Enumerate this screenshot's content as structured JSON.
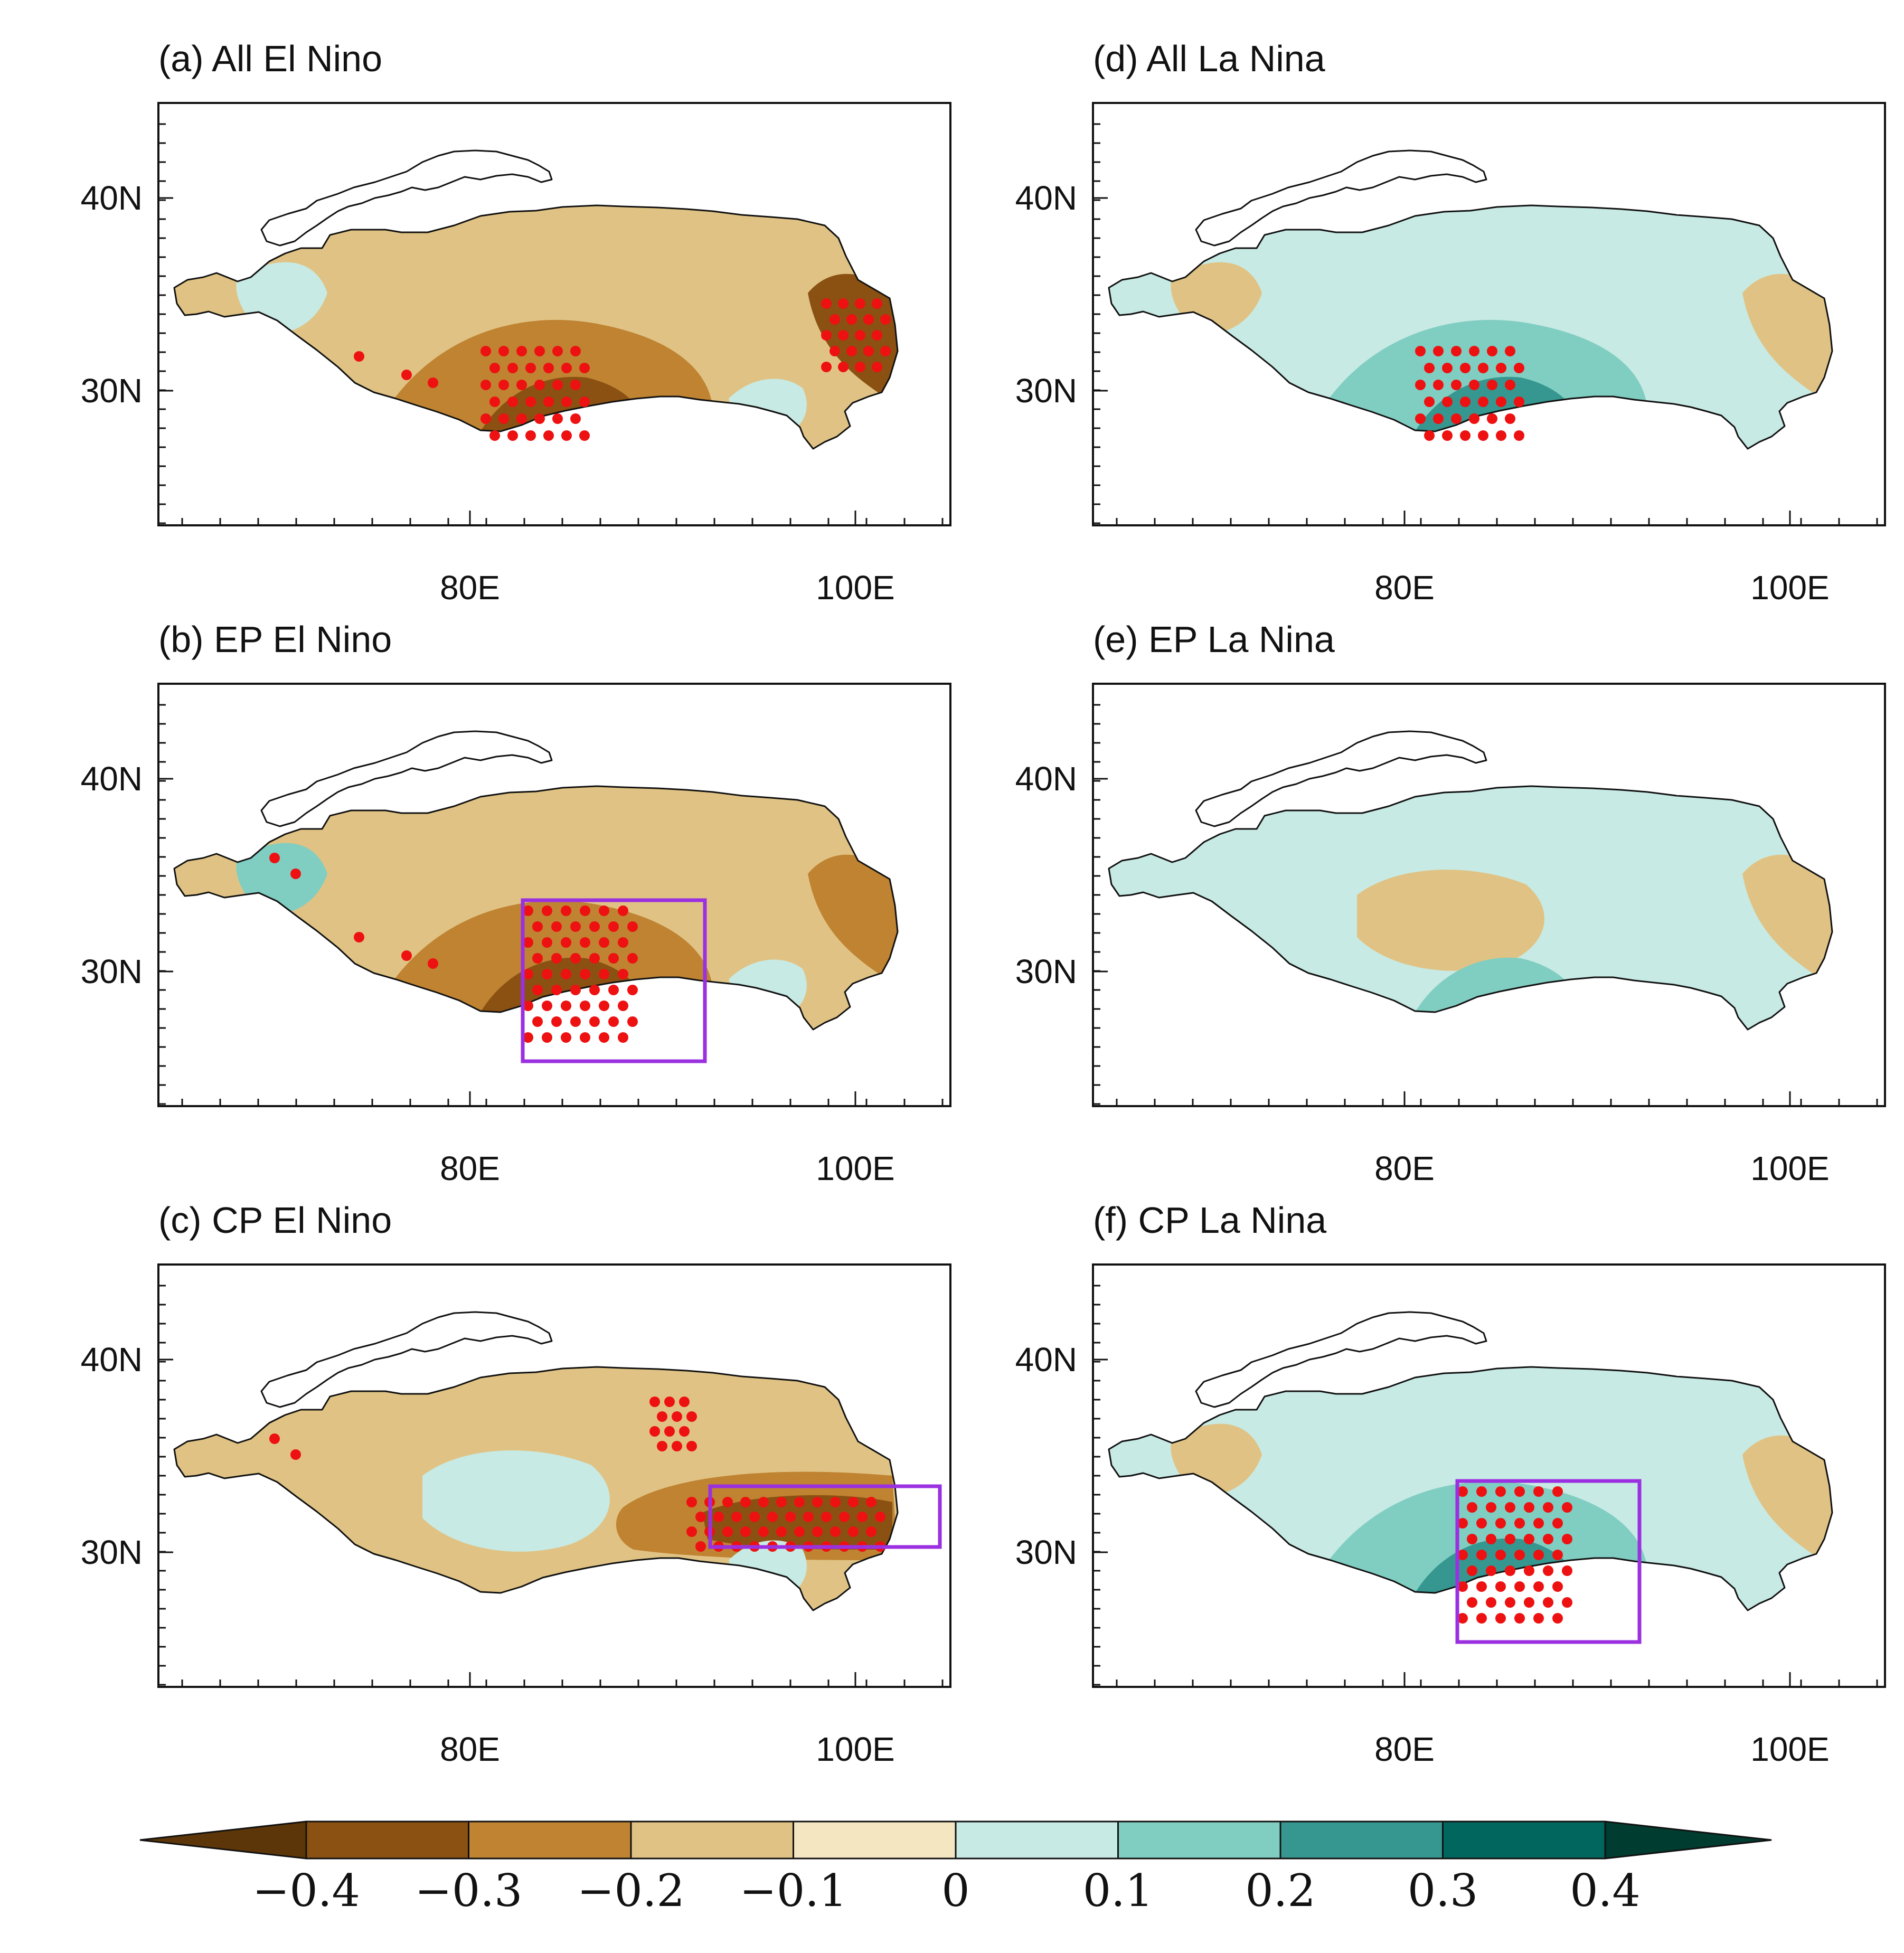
{
  "figure": {
    "type": "map-panels"
  },
  "colors": {
    "cb": [
      "#5c3608",
      "#8a5112",
      "#bf8332",
      "#e0c384",
      "#f5e6c2",
      "#c7eae4",
      "#80cdc1",
      "#35978f",
      "#01665e",
      "#003c30"
    ],
    "dot": "#ee1111",
    "box": "#9b30e0"
  },
  "axes": {
    "y_labels": [
      "40N",
      "30N"
    ],
    "x_labels": [
      "80E",
      "100E"
    ]
  },
  "panels": [
    {
      "id": "a",
      "title": "(a) All El Nino",
      "box": null,
      "patches": [
        {
          "level": 1,
          "shape": "broad"
        },
        {
          "level": 2,
          "shape": "south-central"
        },
        {
          "level": 3,
          "shape": "south-core"
        },
        {
          "level": 3,
          "shape": "east-edge"
        },
        {
          "level": -1,
          "shape": "west-strip"
        },
        {
          "level": -1,
          "shape": "se-small"
        }
      ],
      "dots": [
        "south-core",
        "east-edge",
        "sw-edge"
      ]
    },
    {
      "id": "b",
      "title": "(b) EP El Nino",
      "box": "south-central",
      "patches": [
        {
          "level": 1,
          "shape": "broad"
        },
        {
          "level": 2,
          "shape": "south-central"
        },
        {
          "level": 3,
          "shape": "south-core"
        },
        {
          "level": 2,
          "shape": "east-edge"
        },
        {
          "level": -2,
          "shape": "west-strip"
        },
        {
          "level": -1,
          "shape": "se-small"
        }
      ],
      "dots": [
        "south-central",
        "west-point",
        "sw-edge"
      ]
    },
    {
      "id": "c",
      "title": "(c) CP El Nino",
      "box": "east",
      "patches": [
        {
          "level": 1,
          "shape": "broad"
        },
        {
          "level": -1,
          "shape": "center-west"
        },
        {
          "level": 2,
          "shape": "east-band"
        },
        {
          "level": 3,
          "shape": "east-core"
        },
        {
          "level": -1,
          "shape": "se-small"
        }
      ],
      "dots": [
        "east-band",
        "north-central",
        "west-point"
      ]
    },
    {
      "id": "d",
      "title": "(d) All La Nina",
      "box": null,
      "patches": [
        {
          "level": -1,
          "shape": "broad"
        },
        {
          "level": 1,
          "shape": "west-strip"
        },
        {
          "level": -2,
          "shape": "south-central"
        },
        {
          "level": -3,
          "shape": "south-core"
        },
        {
          "level": 1,
          "shape": "east-edge"
        }
      ],
      "dots": [
        "south-core"
      ]
    },
    {
      "id": "e",
      "title": "(e) EP La Nina",
      "box": null,
      "patches": [
        {
          "level": -1,
          "shape": "broad"
        },
        {
          "level": 1,
          "shape": "center-west"
        },
        {
          "level": -2,
          "shape": "south-core"
        },
        {
          "level": 1,
          "shape": "east-edge"
        }
      ],
      "dots": []
    },
    {
      "id": "f",
      "title": "(f) CP La Nina",
      "box": "south-central",
      "patches": [
        {
          "level": -1,
          "shape": "broad"
        },
        {
          "level": 1,
          "shape": "west-strip"
        },
        {
          "level": -2,
          "shape": "south-central"
        },
        {
          "level": -3,
          "shape": "south-core"
        },
        {
          "level": 1,
          "shape": "east-edge"
        }
      ],
      "dots": [
        "south-central"
      ]
    }
  ],
  "colorbar": {
    "levels": [
      "−0.4",
      "−0.3",
      "−0.2",
      "−0.1",
      "0",
      "0.1",
      "0.2",
      "0.3",
      "0.4"
    ]
  }
}
